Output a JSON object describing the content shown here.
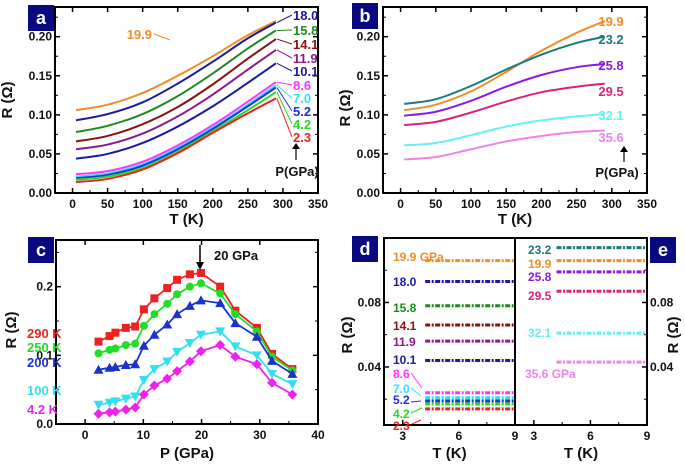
{
  "chart_data": [
    {
      "panel": "a",
      "type": "line",
      "xlabel": "T (K)",
      "ylabel": "R (Ω)",
      "xlim": [
        -25,
        350
      ],
      "ylim": [
        0.0,
        0.238
      ],
      "xticks": [
        0,
        50,
        100,
        150,
        200,
        250,
        300,
        350
      ],
      "yticks": [
        0.0,
        0.05,
        0.1,
        0.15,
        0.2
      ],
      "ytick_labels": [
        "0.00",
        "0.05",
        "0.10",
        "0.15",
        "0.20"
      ],
      "annotation": "P(GPa)",
      "series": [
        {
          "name": "19.9",
          "color": "#f28c28",
          "x": [
            5,
            50,
            100,
            150,
            200,
            250,
            290
          ],
          "values": [
            0.106,
            0.113,
            0.128,
            0.15,
            0.175,
            0.202,
            0.22
          ]
        },
        {
          "name": "18.0",
          "color": "#1a1a9c",
          "x": [
            5,
            50,
            100,
            150,
            200,
            250,
            290
          ],
          "values": [
            0.093,
            0.101,
            0.116,
            0.14,
            0.168,
            0.198,
            0.218
          ]
        },
        {
          "name": "15.8",
          "color": "#1e8a1e",
          "x": [
            5,
            50,
            100,
            150,
            200,
            250,
            290
          ],
          "values": [
            0.078,
            0.086,
            0.101,
            0.124,
            0.153,
            0.185,
            0.208
          ]
        },
        {
          "name": "14.1",
          "color": "#8b1010",
          "x": [
            5,
            50,
            100,
            150,
            200,
            250,
            290
          ],
          "values": [
            0.066,
            0.073,
            0.088,
            0.11,
            0.139,
            0.172,
            0.197
          ]
        },
        {
          "name": "11.9",
          "color": "#8b1a8b",
          "x": [
            5,
            50,
            100,
            150,
            200,
            250,
            290
          ],
          "values": [
            0.056,
            0.062,
            0.076,
            0.098,
            0.126,
            0.158,
            0.183
          ]
        },
        {
          "name": "10.1",
          "color": "#1a1a9c",
          "x": [
            5,
            50,
            100,
            150,
            200,
            250,
            290
          ],
          "values": [
            0.044,
            0.05,
            0.064,
            0.085,
            0.111,
            0.141,
            0.166
          ]
        },
        {
          "name": "8.6",
          "color": "#ff33ff",
          "x": [
            5,
            50,
            100,
            150,
            200,
            250,
            290
          ],
          "values": [
            0.024,
            0.028,
            0.04,
            0.061,
            0.087,
            0.117,
            0.142
          ]
        },
        {
          "name": "7.0",
          "color": "#33e0f0",
          "x": [
            5,
            50,
            100,
            150,
            200,
            250,
            290
          ],
          "values": [
            0.021,
            0.025,
            0.037,
            0.058,
            0.084,
            0.113,
            0.138
          ]
        },
        {
          "name": "5.2",
          "color": "#1a33dd",
          "x": [
            5,
            50,
            100,
            150,
            200,
            250,
            290
          ],
          "values": [
            0.019,
            0.023,
            0.035,
            0.056,
            0.082,
            0.111,
            0.135
          ]
        },
        {
          "name": "4.2",
          "color": "#22dd22",
          "x": [
            5,
            50,
            100,
            150,
            200,
            250,
            290
          ],
          "values": [
            0.017,
            0.021,
            0.032,
            0.053,
            0.079,
            0.106,
            0.129
          ]
        },
        {
          "name": "2.3",
          "color": "#ee2020",
          "x": [
            5,
            50,
            100,
            150,
            200,
            250,
            290
          ],
          "values": [
            0.014,
            0.018,
            0.03,
            0.051,
            0.077,
            0.102,
            0.121
          ]
        }
      ]
    },
    {
      "panel": "b",
      "type": "line",
      "xlabel": "T (K)",
      "ylabel": "R (Ω)",
      "xlim": [
        -25,
        350
      ],
      "ylim": [
        0.0,
        0.238
      ],
      "xticks": [
        0,
        50,
        100,
        150,
        200,
        250,
        300,
        350
      ],
      "yticks": [
        0.0,
        0.05,
        0.1,
        0.15,
        0.2
      ],
      "ytick_labels": [
        "0.00",
        "0.05",
        "0.10",
        "0.15",
        "0.20"
      ],
      "annotation": "P(GPa)",
      "series": [
        {
          "name": "19.9",
          "color": "#f28c28",
          "x": [
            5,
            50,
            100,
            150,
            200,
            250,
            290
          ],
          "values": [
            0.106,
            0.113,
            0.13,
            0.155,
            0.182,
            0.205,
            0.22
          ]
        },
        {
          "name": "23.2",
          "color": "#1a7a7a",
          "x": [
            5,
            50,
            100,
            150,
            200,
            250,
            290
          ],
          "values": [
            0.114,
            0.12,
            0.137,
            0.158,
            0.177,
            0.192,
            0.2
          ]
        },
        {
          "name": "25.8",
          "color": "#8a1ae0",
          "x": [
            5,
            50,
            100,
            150,
            200,
            250,
            290
          ],
          "values": [
            0.099,
            0.104,
            0.118,
            0.136,
            0.151,
            0.161,
            0.165
          ]
        },
        {
          "name": "29.5",
          "color": "#e0207a",
          "x": [
            5,
            50,
            100,
            150,
            200,
            250,
            290
          ],
          "values": [
            0.087,
            0.091,
            0.103,
            0.117,
            0.129,
            0.136,
            0.14
          ]
        },
        {
          "name": "32.1",
          "color": "#66f0f0",
          "x": [
            5,
            50,
            100,
            150,
            200,
            250,
            290
          ],
          "values": [
            0.061,
            0.064,
            0.074,
            0.085,
            0.093,
            0.098,
            0.101
          ]
        },
        {
          "name": "35.6",
          "color": "#f080f0",
          "x": [
            5,
            50,
            100,
            150,
            200,
            250,
            290
          ],
          "values": [
            0.043,
            0.046,
            0.056,
            0.066,
            0.073,
            0.078,
            0.08
          ]
        }
      ]
    },
    {
      "panel": "c",
      "type": "line",
      "xlabel": "P (GPa)",
      "ylabel": "R (Ω)",
      "xlim": [
        -5,
        40
      ],
      "ylim": [
        0.0,
        0.268
      ],
      "xticks": [
        0,
        10,
        20,
        30,
        40
      ],
      "yticks": [
        0.0,
        0.1,
        0.2
      ],
      "ytick_labels": [
        "0.0",
        "0.1",
        "0.2"
      ],
      "annotation": "20 GPa",
      "x": [
        2.3,
        4.2,
        5.2,
        7.0,
        8.6,
        10.1,
        11.9,
        14.1,
        15.8,
        18.0,
        19.9,
        23.2,
        25.8,
        29.5,
        32.1,
        35.6
      ],
      "series": [
        {
          "name": "290 K",
          "color": "#ee2020",
          "marker": "square",
          "values": [
            0.12,
            0.128,
            0.133,
            0.14,
            0.142,
            0.167,
            0.183,
            0.198,
            0.21,
            0.218,
            0.22,
            0.2,
            0.165,
            0.14,
            0.102,
            0.08
          ]
        },
        {
          "name": "250 K",
          "color": "#22dd22",
          "marker": "circle",
          "values": [
            0.103,
            0.108,
            0.11,
            0.115,
            0.117,
            0.143,
            0.16,
            0.175,
            0.189,
            0.2,
            0.205,
            0.19,
            0.16,
            0.135,
            0.098,
            0.078
          ]
        },
        {
          "name": "200 K",
          "color": "#1a33cc",
          "marker": "triangle-up",
          "values": [
            0.079,
            0.082,
            0.083,
            0.086,
            0.087,
            0.114,
            0.13,
            0.145,
            0.16,
            0.172,
            0.18,
            0.176,
            0.147,
            0.127,
            0.092,
            0.073
          ]
        },
        {
          "name": "100 K",
          "color": "#33e0f0",
          "marker": "triangle-down",
          "values": [
            0.028,
            0.031,
            0.033,
            0.037,
            0.04,
            0.064,
            0.08,
            0.091,
            0.105,
            0.118,
            0.13,
            0.135,
            0.113,
            0.1,
            0.073,
            0.058
          ]
        },
        {
          "name": "4.2 K",
          "color": "#ee22ee",
          "marker": "diamond",
          "values": [
            0.015,
            0.017,
            0.018,
            0.021,
            0.024,
            0.043,
            0.056,
            0.066,
            0.077,
            0.091,
            0.106,
            0.115,
            0.098,
            0.087,
            0.06,
            0.043
          ]
        }
      ]
    },
    {
      "panel": "d",
      "type": "scatter",
      "xlabel": "T (K)",
      "ylabel": "R (Ω)",
      "xlim": [
        2,
        9
      ],
      "ylim": [
        0.004,
        0.12
      ],
      "xticks": [
        3,
        6,
        9
      ],
      "yticks": [
        0.04,
        0.08
      ],
      "ytick_labels": [
        "0.04",
        "0.08"
      ],
      "x_range_data": [
        4.2,
        9
      ],
      "series": [
        {
          "name": "19.9 GPa",
          "color": "#f28c28",
          "value": 0.106
        },
        {
          "name": "18.0",
          "color": "#1a1a9c",
          "value": 0.093
        },
        {
          "name": "15.8",
          "color": "#1e8a1e",
          "value": 0.078
        },
        {
          "name": "14.1",
          "color": "#8b1010",
          "value": 0.066
        },
        {
          "name": "11.9",
          "color": "#8b1a8b",
          "value": 0.056
        },
        {
          "name": "10.1",
          "color": "#1a1a9c",
          "value": 0.044
        },
        {
          "name": "8.6",
          "color": "#ff33ff",
          "value": 0.024
        },
        {
          "name": "7.0",
          "color": "#33e0f0",
          "value": 0.021
        },
        {
          "name": "5.2",
          "color": "#1a33dd",
          "value": 0.019
        },
        {
          "name": "4.2",
          "color": "#22dd22",
          "value": 0.017
        },
        {
          "name": "2.3",
          "color": "#ee2020",
          "value": 0.014
        }
      ]
    },
    {
      "panel": "e",
      "type": "scatter",
      "xlabel": "T (K)",
      "ylabel": "R (Ω)",
      "xlim": [
        2,
        9
      ],
      "ylim": [
        0.004,
        0.12
      ],
      "xticks": [
        3,
        6,
        9
      ],
      "yticks": [
        0.04,
        0.08
      ],
      "ytick_labels": [
        "0.04",
        "0.08"
      ],
      "x_range_data": [
        4.2,
        9
      ],
      "series": [
        {
          "name": "23.2",
          "color": "#1a7a7a",
          "value": 0.114
        },
        {
          "name": "19.9",
          "color": "#f28c28",
          "value": 0.106
        },
        {
          "name": "25.8",
          "color": "#8a1ae0",
          "value": 0.099
        },
        {
          "name": "29.5",
          "color": "#e0207a",
          "value": 0.087
        },
        {
          "name": "32.1",
          "color": "#66f0f0",
          "value": 0.061
        },
        {
          "name": "35.6 GPa",
          "color": "#f080f0",
          "value": 0.043
        }
      ]
    }
  ],
  "panel_badge_color": "#0a0a80"
}
